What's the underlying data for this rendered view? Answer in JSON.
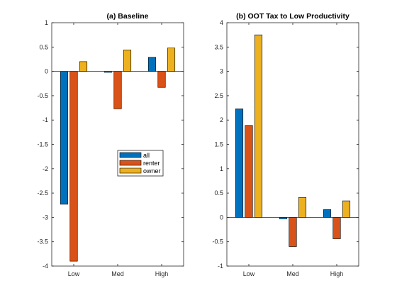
{
  "chart_data": [
    {
      "type": "bar",
      "title": "(a) Baseline",
      "categories": [
        "Low",
        "Med",
        "High"
      ],
      "ylim": [
        -4,
        1
      ],
      "yticks": [
        -4,
        -3.5,
        -3,
        -2.5,
        -2,
        -1.5,
        -1,
        -0.5,
        0,
        0.5,
        1
      ],
      "ytick_labels": [
        "-4",
        "-3.5",
        "-3",
        "-2.5",
        "-2",
        "-1.5",
        "-1",
        "-0.5",
        "0",
        "0.5",
        "1"
      ],
      "xlabel": "",
      "ylabel": "",
      "grid": false,
      "legend": "center-right",
      "series": [
        {
          "name": "all",
          "values": [
            -2.73,
            -0.02,
            0.29
          ]
        },
        {
          "name": "renter",
          "values": [
            -3.9,
            -0.77,
            -0.33
          ]
        },
        {
          "name": "owner",
          "values": [
            0.2,
            0.44,
            0.48
          ]
        }
      ]
    },
    {
      "type": "bar",
      "title": "(b) OOT Tax to Low Productivity",
      "categories": [
        "Low",
        "Med",
        "High"
      ],
      "ylim": [
        -1,
        4
      ],
      "yticks": [
        -1,
        -0.5,
        0,
        0.5,
        1,
        1.5,
        2,
        2.5,
        3,
        3.5,
        4
      ],
      "ytick_labels": [
        "-1",
        "-0.5",
        "0",
        "0.5",
        "1",
        "1.5",
        "2",
        "2.5",
        "3",
        "3.5",
        "4"
      ],
      "xlabel": "",
      "ylabel": "",
      "grid": false,
      "series": [
        {
          "name": "all",
          "values": [
            2.23,
            -0.03,
            0.16
          ]
        },
        {
          "name": "renter",
          "values": [
            1.89,
            -0.6,
            -0.44
          ]
        },
        {
          "name": "owner",
          "values": [
            3.75,
            0.41,
            0.34
          ]
        }
      ]
    }
  ],
  "colors": {
    "all": "#0072BD",
    "renter": "#D95319",
    "owner": "#EDB120",
    "axis": "#262626",
    "bar_edge": "#000000"
  }
}
